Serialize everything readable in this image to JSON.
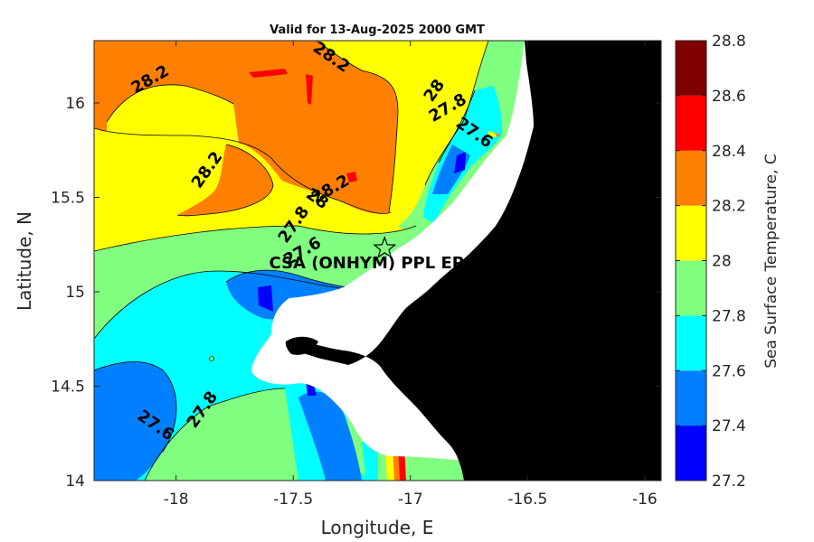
{
  "title": "Valid for 13-Aug-2025 2000 GMT",
  "x_axis": {
    "label": "Longitude, E",
    "range": [
      -18.35,
      -15.93
    ],
    "ticks": [
      -18,
      -17.5,
      -17,
      -16.5,
      -16
    ],
    "tick_labels": [
      "-18",
      "-17.5",
      "-17",
      "-16.5",
      "-16"
    ]
  },
  "y_axis": {
    "label": "Latitude, N",
    "range": [
      14.0,
      16.33
    ],
    "ticks": [
      14,
      14.5,
      15,
      15.5,
      16
    ],
    "tick_labels": [
      "14",
      "14.5",
      "15",
      "15.5",
      "16"
    ]
  },
  "colorbar": {
    "label": "Sea Surface Temperature, C",
    "levels": [
      27.2,
      27.4,
      27.6,
      27.8,
      28.0,
      28.2,
      28.4,
      28.6,
      28.8
    ],
    "tick_labels": [
      "27.2",
      "27.4",
      "27.6",
      "27.8",
      "28",
      "28.2",
      "28.4",
      "28.6",
      "28.8"
    ],
    "colors": [
      "#0000ff",
      "#0080ff",
      "#00ffff",
      "#80ff80",
      "#ffff00",
      "#ff8000",
      "#ff0000",
      "#800000"
    ]
  },
  "map_colors": {
    "land": "#000000",
    "no_data": "#ffffff"
  },
  "contour_labels": [
    {
      "text": "28.2",
      "lon": -18.1,
      "lat": 16.1
    },
    {
      "text": "28.2",
      "lon": -17.35,
      "lat": 16.22
    },
    {
      "text": "28",
      "lon": -16.88,
      "lat": 16.05
    },
    {
      "text": "27.8",
      "lon": -16.83,
      "lat": 15.95
    },
    {
      "text": "27.6",
      "lon": -16.74,
      "lat": 15.82
    },
    {
      "text": "28.2",
      "lon": -17.85,
      "lat": 15.63
    },
    {
      "text": "28.2",
      "lon": -17.33,
      "lat": 15.52
    },
    {
      "text": "28",
      "lon": -17.41,
      "lat": 15.47
    },
    {
      "text": "27.8",
      "lon": -17.48,
      "lat": 15.34
    },
    {
      "text": "27.6",
      "lon": -17.45,
      "lat": 15.19
    },
    {
      "text": "27.6",
      "lon": -18.1,
      "lat": 14.27
    },
    {
      "text": "27.8",
      "lon": -17.87,
      "lat": 14.36
    }
  ],
  "station": {
    "label": "CSA (ONHYM) PPL EP",
    "symbol": "star-icon",
    "lon": -17.11,
    "lat": 15.23
  }
}
